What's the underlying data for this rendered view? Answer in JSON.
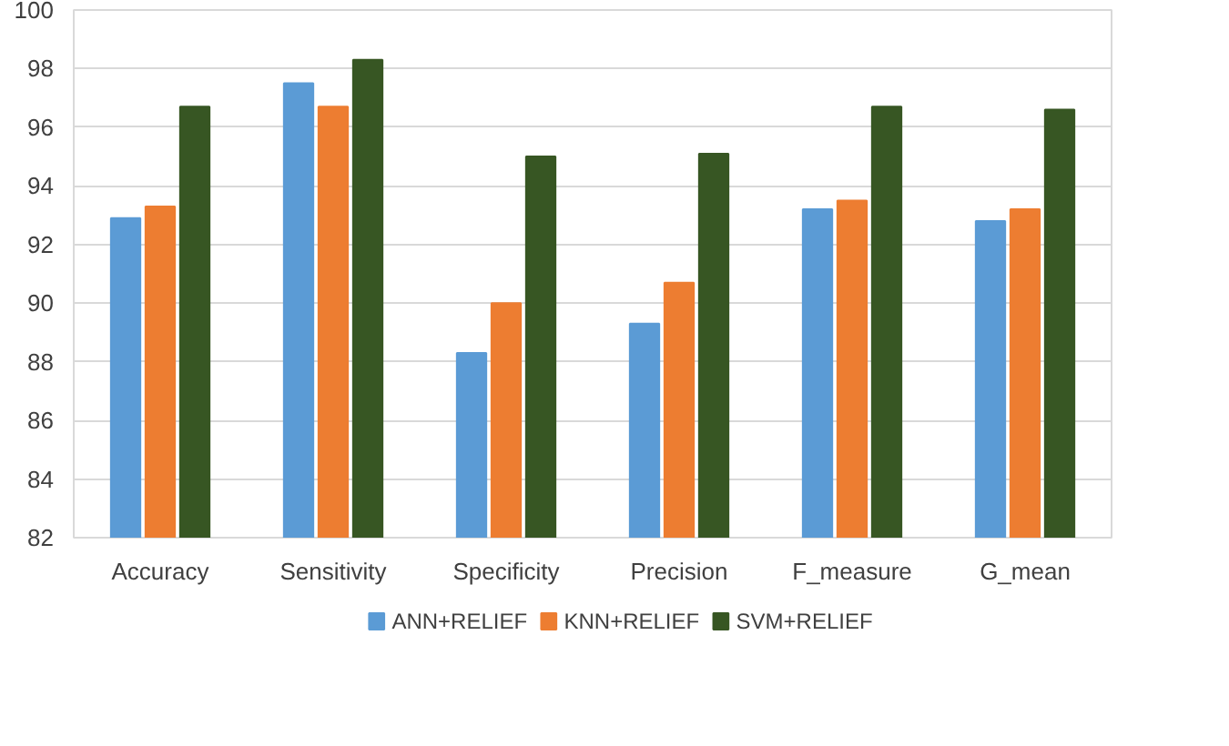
{
  "chart_data": {
    "type": "bar",
    "categories": [
      "Accuracy",
      "Sensitivity",
      "Specificity",
      "Precision",
      "F_measure",
      "G_mean"
    ],
    "series": [
      {
        "name": "ANN+RELIEF",
        "color": "#5b9bd5",
        "values": [
          92.9,
          97.5,
          88.3,
          89.3,
          93.2,
          92.8
        ]
      },
      {
        "name": "KNN+RELIEF",
        "color": "#ed7d31",
        "values": [
          93.3,
          96.7,
          90.0,
          90.7,
          93.5,
          93.2
        ]
      },
      {
        "name": "SVM+RELIEF",
        "color": "#375623",
        "values": [
          96.7,
          98.3,
          95.0,
          95.1,
          96.7,
          96.6
        ]
      }
    ],
    "ylim": [
      82,
      100
    ],
    "yticks": [
      82,
      84,
      86,
      88,
      90,
      92,
      94,
      96,
      98,
      100
    ],
    "grid": "y",
    "legend": "bottom"
  }
}
